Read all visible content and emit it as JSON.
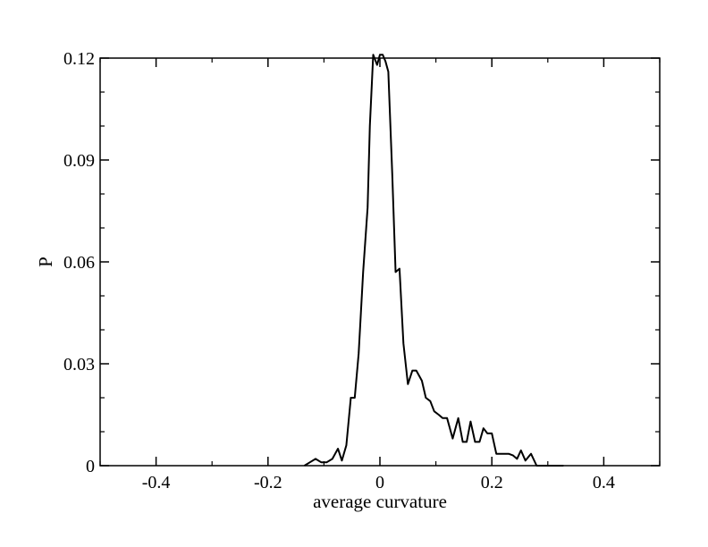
{
  "chart_data": {
    "type": "line",
    "title": "",
    "xlabel": "average curvature",
    "ylabel": "P",
    "xlim": [
      -0.5,
      0.5
    ],
    "ylim": [
      0,
      0.12
    ],
    "x_ticks": [
      -0.4,
      -0.2,
      0,
      0.2,
      0.4
    ],
    "x_tick_labels": [
      "-0.4",
      "-0.2",
      "0",
      "0.2",
      "0.4"
    ],
    "y_ticks": [
      0,
      0.03,
      0.06,
      0.09,
      0.12
    ],
    "y_tick_labels": [
      "0",
      "0.03",
      "0.06",
      "0.09",
      "0.12"
    ],
    "grid": false,
    "legend": "none",
    "line_color": "#000000",
    "series": [
      {
        "x": [
          -0.135,
          -0.125,
          -0.115,
          -0.105,
          -0.095,
          -0.085,
          -0.075,
          -0.068,
          -0.06,
          -0.052,
          -0.045,
          -0.038,
          -0.03,
          -0.022,
          -0.018,
          -0.012,
          -0.005,
          0.0,
          0.005,
          0.01,
          0.015,
          0.022,
          0.028,
          0.035,
          0.042,
          0.05,
          0.058,
          0.065,
          0.075,
          0.082,
          0.09,
          0.097,
          0.105,
          0.112,
          0.12,
          0.13,
          0.14,
          0.148,
          0.155,
          0.162,
          0.17,
          0.178,
          0.185,
          0.192,
          0.2,
          0.208,
          0.215,
          0.222,
          0.23,
          0.238,
          0.245,
          0.252,
          0.26,
          0.27,
          0.28,
          0.29,
          0.298,
          0.305,
          0.312,
          0.32,
          0.328
        ],
        "y": [
          0.0,
          0.001,
          0.002,
          0.001,
          0.001,
          0.002,
          0.005,
          0.0015,
          0.006,
          0.02,
          0.02,
          0.033,
          0.057,
          0.076,
          0.1,
          0.121,
          0.118,
          0.121,
          0.121,
          0.119,
          0.116,
          0.086,
          0.057,
          0.058,
          0.036,
          0.024,
          0.028,
          0.028,
          0.025,
          0.02,
          0.019,
          0.016,
          0.015,
          0.014,
          0.014,
          0.008,
          0.014,
          0.007,
          0.007,
          0.013,
          0.007,
          0.007,
          0.011,
          0.0095,
          0.0095,
          0.0035,
          0.0035,
          0.0035,
          0.0035,
          0.003,
          0.002,
          0.0045,
          0.0015,
          0.0035,
          0.0,
          0.0,
          0.0,
          0.0,
          0.0,
          0.0,
          0.0
        ]
      }
    ]
  }
}
